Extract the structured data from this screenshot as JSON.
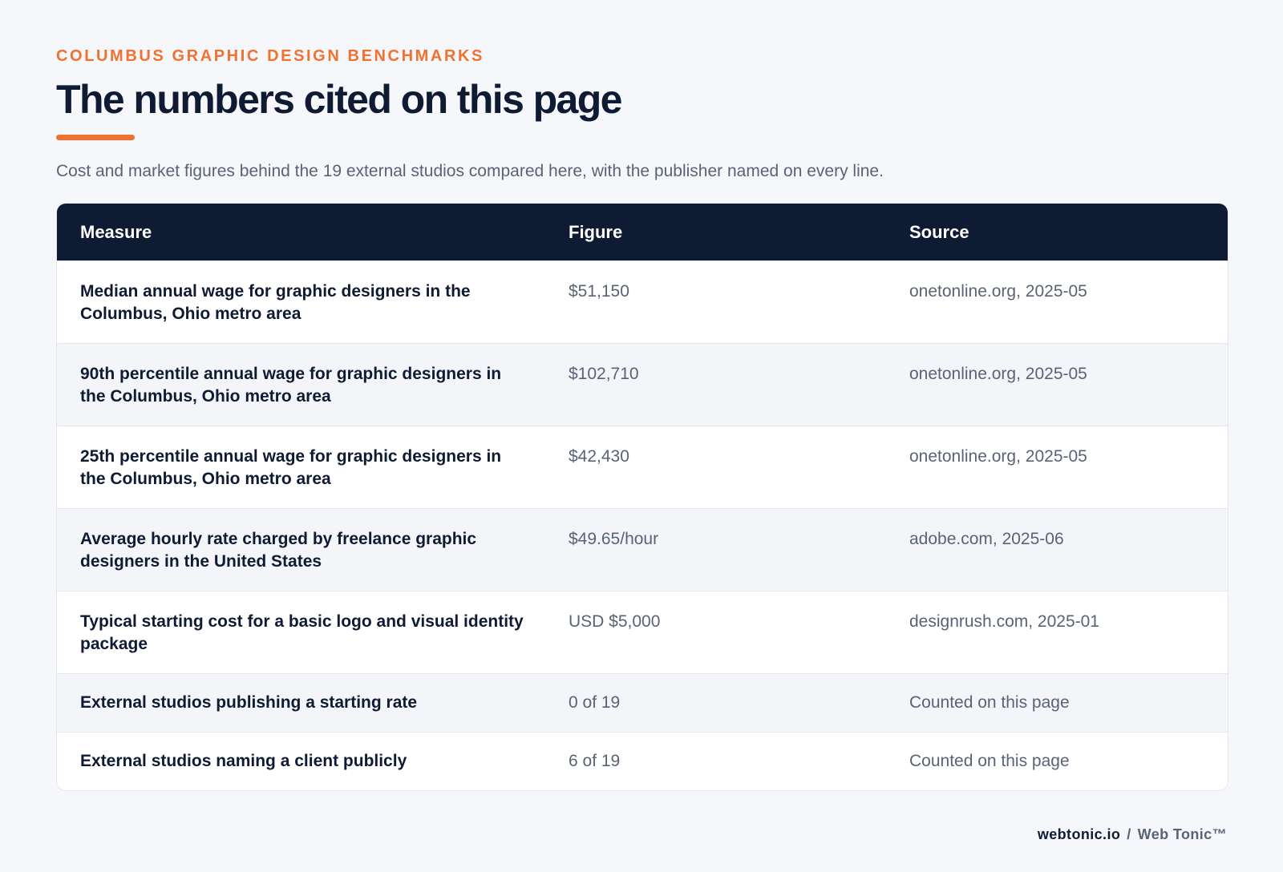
{
  "header": {
    "eyebrow": "COLUMBUS GRAPHIC DESIGN BENCHMARKS",
    "title": "The numbers cited on this page",
    "subtitle": "Cost and market figures behind the 19 external studios compared here, with the publisher named on every line."
  },
  "table": {
    "columns": [
      "Measure",
      "Figure",
      "Source"
    ],
    "rows": [
      {
        "measure": "Median annual wage for graphic designers in the Columbus, Ohio metro area",
        "figure": "$51,150",
        "source": "onetonline.org, 2025-05"
      },
      {
        "measure": "90th percentile annual wage for graphic designers in the Columbus, Ohio metro area",
        "figure": "$102,710",
        "source": "onetonline.org, 2025-05"
      },
      {
        "measure": "25th percentile annual wage for graphic designers in the Columbus, Ohio metro area",
        "figure": "$42,430",
        "source": "onetonline.org, 2025-05"
      },
      {
        "measure": "Average hourly rate charged by freelance graphic designers in the United States",
        "figure": "$49.65/hour",
        "source": "adobe.com, 2025-06"
      },
      {
        "measure": "Typical starting cost for a basic logo and visual identity package",
        "figure": "USD $5,000",
        "source": "designrush.com, 2025-01"
      },
      {
        "measure": "External studios publishing a starting rate",
        "figure": "0 of 19",
        "source": "Counted on this page"
      },
      {
        "measure": "External studios naming a client publicly",
        "figure": "6 of 19",
        "source": "Counted on this page"
      }
    ]
  },
  "footer": {
    "domain": "webtonic.io",
    "separator": "/",
    "brand": "Web Tonic™"
  },
  "colors": {
    "accent": "#f07130",
    "navy": "#0f1b33",
    "muted_text": "#5a6375",
    "page_bg": "#f5f7fa",
    "stripe_bg": "#f3f5f8"
  }
}
